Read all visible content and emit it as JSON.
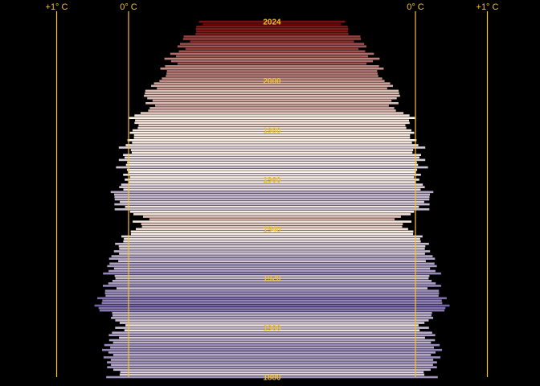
{
  "chart_data": {
    "type": "bar",
    "orientation": "horizontal",
    "mirrored": true,
    "title": "",
    "xlabel": "",
    "ylabel": "",
    "x_unit": "°C",
    "x_range": [
      -1.12,
      1.12
    ],
    "y_range": [
      1880,
      2024
    ],
    "reference_lines": [
      {
        "value": -1,
        "label": "+1° C"
      },
      {
        "value": 0,
        "label": "0° C"
      },
      {
        "value": 0,
        "label": "0° C"
      },
      {
        "value": 1,
        "label": "+1° C"
      }
    ],
    "year_labels": [
      {
        "year": 2024,
        "text": "2024"
      },
      {
        "year": 2000,
        "text": "2000"
      },
      {
        "year": 1980,
        "text": "1980"
      },
      {
        "year": 1960,
        "text": "1960"
      },
      {
        "year": 1940,
        "text": "1940"
      },
      {
        "year": 1920,
        "text": "1920"
      },
      {
        "year": 1900,
        "text": "1900"
      },
      {
        "year": 1880,
        "text": "1880"
      }
    ],
    "anomaly_keyframes": [
      [
        1880,
        -0.21
      ],
      [
        1885,
        -0.22
      ],
      [
        1890,
        -0.28
      ],
      [
        1895,
        -0.24
      ],
      [
        1900,
        -0.12
      ],
      [
        1905,
        -0.26
      ],
      [
        1910,
        -0.4
      ],
      [
        1915,
        -0.22
      ],
      [
        1920,
        -0.29
      ],
      [
        1925,
        -0.23
      ],
      [
        1930,
        -0.15
      ],
      [
        1935,
        -0.16
      ],
      [
        1940,
        0.1
      ],
      [
        1944,
        0.18
      ],
      [
        1948,
        -0.1
      ],
      [
        1950,
        -0.18
      ],
      [
        1955,
        -0.15
      ],
      [
        1960,
        -0.04
      ],
      [
        1965,
        -0.1
      ],
      [
        1970,
        -0.05
      ],
      [
        1975,
        -0.06
      ],
      [
        1980,
        0.12
      ],
      [
        1985,
        0.1
      ],
      [
        1990,
        0.28
      ],
      [
        1995,
        0.32
      ],
      [
        2000,
        0.36
      ],
      [
        2005,
        0.54
      ],
      [
        2010,
        0.62
      ],
      [
        2015,
        0.76
      ],
      [
        2020,
        0.85
      ],
      [
        2024,
        1.0
      ]
    ],
    "palette": {
      "cold": "#5b4a9c",
      "neutral": "#fff5eb",
      "warm": "#6b0000"
    }
  }
}
